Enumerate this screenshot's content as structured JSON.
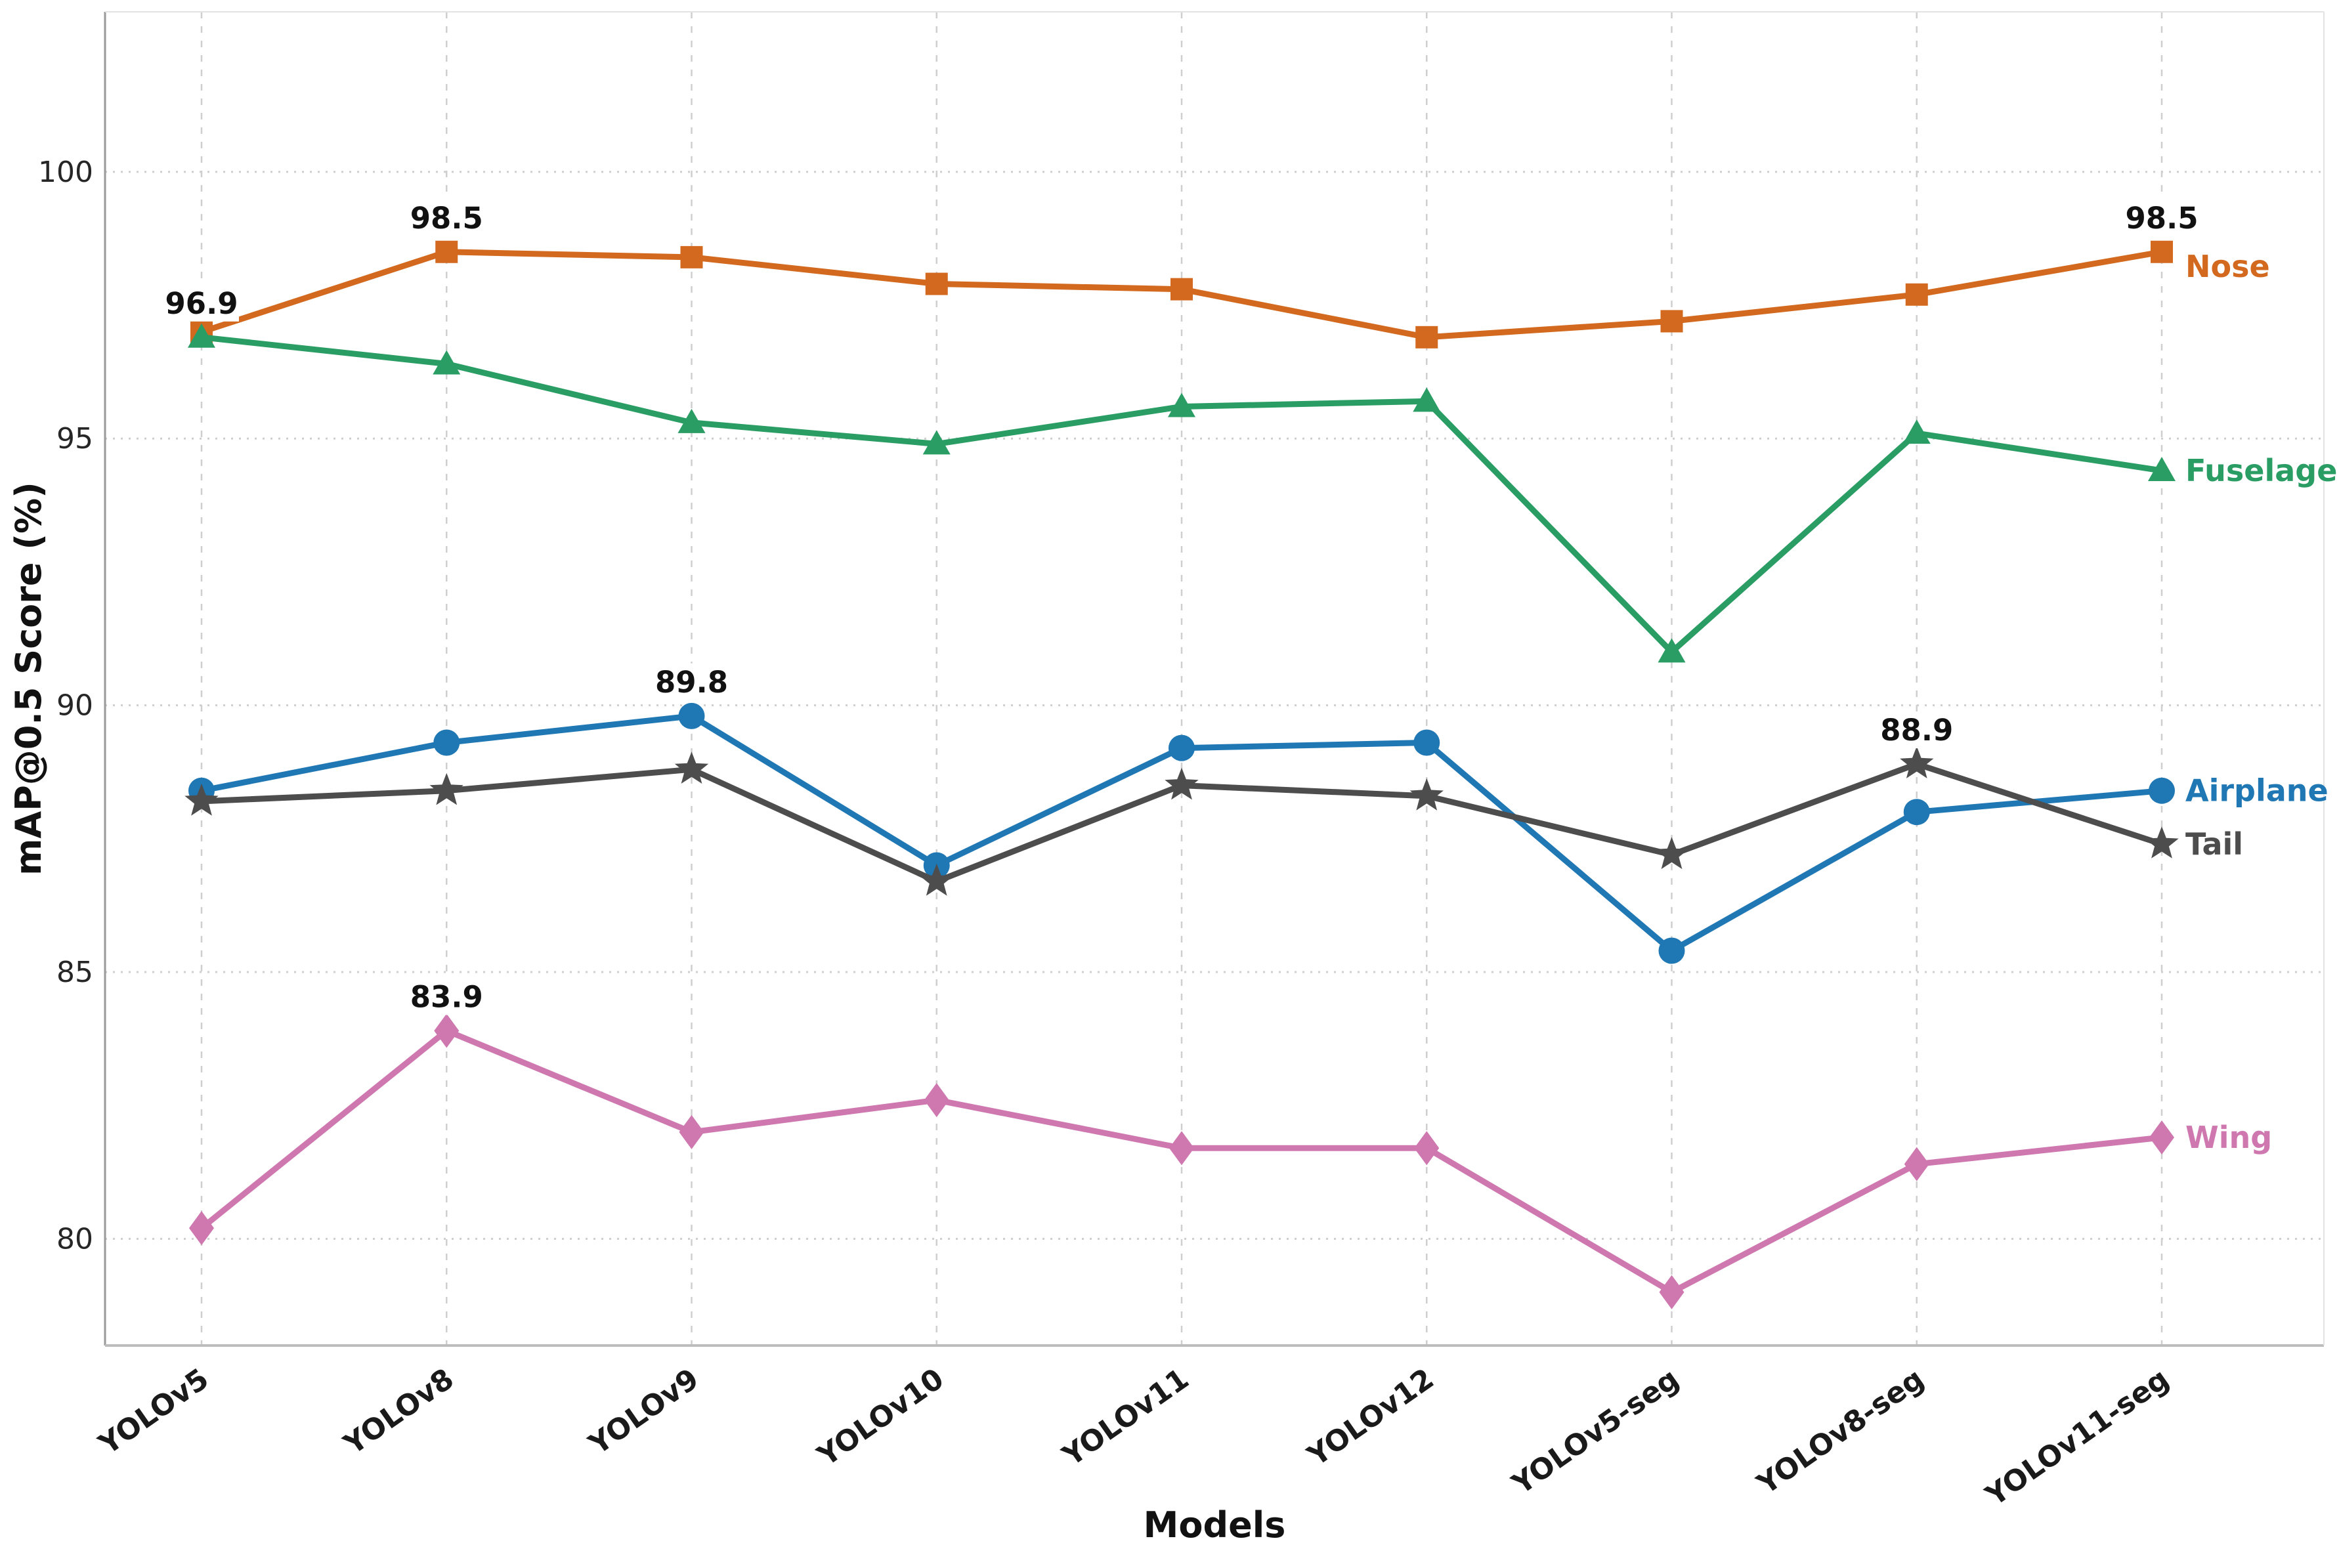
{
  "chart_data": {
    "type": "line",
    "title": "",
    "xlabel": "Models",
    "ylabel": "mAP@0.5 Score (%)",
    "categories": [
      "YOLOv5",
      "YOLOv8",
      "YOLOv9",
      "YOLOv10",
      "YOLOv11",
      "YOLOv12",
      "YOLOv5-seg",
      "YOLOv8-seg",
      "YOLOv11-seg"
    ],
    "yticks": [
      100,
      95,
      90,
      85,
      80
    ],
    "ylim": [
      78,
      103
    ],
    "grid": true,
    "legend_position": "end-of-line",
    "series": [
      {
        "name": "Nose",
        "color": "#d2691e",
        "marker": "square",
        "values": [
          97.0,
          98.5,
          98.4,
          97.9,
          97.8,
          96.9,
          97.2,
          97.7,
          98.5
        ]
      },
      {
        "name": "Fuselage",
        "color": "#2a9d64",
        "marker": "triangle",
        "values": [
          96.9,
          96.4,
          95.3,
          94.9,
          95.6,
          95.7,
          91.0,
          95.1,
          94.4
        ]
      },
      {
        "name": "Airplane",
        "color": "#1f77b4",
        "marker": "circle",
        "values": [
          88.4,
          89.3,
          89.8,
          87.0,
          89.2,
          89.3,
          85.4,
          88.0,
          88.4
        ]
      },
      {
        "name": "Tail",
        "color": "#4d4d4d",
        "marker": "star",
        "values": [
          88.2,
          88.4,
          88.8,
          86.7,
          88.5,
          88.3,
          87.2,
          88.9,
          87.4
        ]
      },
      {
        "name": "Wing",
        "color": "#ce78af",
        "marker": "diamond",
        "values": [
          80.2,
          83.9,
          82.0,
          82.6,
          81.7,
          81.7,
          79.0,
          81.4,
          81.9
        ]
      }
    ],
    "annotations": [
      {
        "text": "96.9",
        "series": "Fuselage",
        "index": 0
      },
      {
        "text": "98.5",
        "series": "Nose",
        "index": 1
      },
      {
        "text": "89.8",
        "series": "Airplane",
        "index": 2
      },
      {
        "text": "83.9",
        "series": "Wing",
        "index": 1
      },
      {
        "text": "88.9",
        "series": "Tail",
        "index": 7
      },
      {
        "text": "98.5",
        "series": "Nose",
        "index": 8
      }
    ],
    "annotation_color": "#111111",
    "gridline_color": "#cfcfcf",
    "tick_label_color": "#262626"
  }
}
